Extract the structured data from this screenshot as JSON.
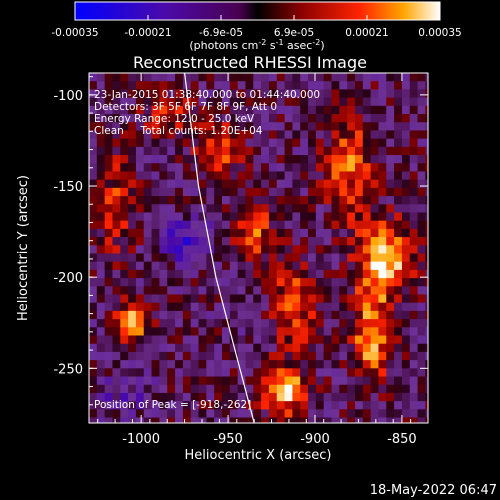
{
  "chart_data": {
    "type": "heatmap",
    "title": "Reconstructed RHESSI Image",
    "xlabel": "Heliocentric X (arcsec)",
    "ylabel": "Heliocentric Y (arcsec)",
    "xlim": [
      -1030,
      -835
    ],
    "ylim": [
      -280,
      -88
    ],
    "x_ticks": [
      -1000,
      -950,
      -900,
      -850
    ],
    "y_ticks": [
      -100,
      -150,
      -200,
      -250
    ],
    "colorbar": {
      "ticks": [
        "-0.00035",
        "-0.00021",
        "-6.9e-05",
        "6.9e-05",
        "0.00021",
        "0.00035"
      ],
      "range": [
        -0.00035,
        0.00035
      ],
      "unit_parts": [
        "(photons cm",
        "-2",
        " s",
        "-1",
        " asec",
        "-2",
        ")"
      ]
    },
    "annotations": [
      "23-Jan-2015 01:38:40.000 to 01:44:40.000",
      "Detectors: 3F 5F 6F 7F 8F 9F, Att 0",
      "Energy Range: 12.0 - 25.0 keV",
      "Clean     Total counts: 1.20E+04"
    ],
    "peak_label": "Position of Peak = [-918,-262]",
    "peak": [
      -918,
      -262
    ],
    "limb_curve": [
      [
        -975,
        -88
      ],
      [
        -967,
        -150
      ],
      [
        -957,
        -200
      ],
      [
        -946,
        -240
      ],
      [
        -935,
        -280
      ]
    ],
    "emission_sources": [
      {
        "x": -860,
        "y": -190,
        "amp": 1.0,
        "sx": 10,
        "sy": 14
      },
      {
        "x": -868,
        "y": -232,
        "amp": 0.75,
        "sx": 8,
        "sy": 18
      },
      {
        "x": -880,
        "y": -140,
        "amp": 0.6,
        "sx": 10,
        "sy": 20
      },
      {
        "x": -918,
        "y": -262,
        "amp": 1.0,
        "sx": 9,
        "sy": 9
      },
      {
        "x": -912,
        "y": -215,
        "amp": 0.65,
        "sx": 8,
        "sy": 16
      },
      {
        "x": -935,
        "y": -175,
        "amp": 0.55,
        "sx": 8,
        "sy": 12
      },
      {
        "x": -955,
        "y": -130,
        "amp": 0.55,
        "sx": 10,
        "sy": 10
      },
      {
        "x": -1005,
        "y": -225,
        "amp": 0.85,
        "sx": 7,
        "sy": 8
      },
      {
        "x": -1015,
        "y": -160,
        "amp": 0.45,
        "sx": 8,
        "sy": 20
      },
      {
        "x": -985,
        "y": -110,
        "amp": 0.45,
        "sx": 10,
        "sy": 8
      }
    ],
    "negative_sources": [
      {
        "x": -975,
        "y": -180,
        "amp": 0.6,
        "sx": 10,
        "sy": 8
      },
      {
        "x": -1010,
        "y": -265,
        "amp": 0.3,
        "sx": 12,
        "sy": 8
      }
    ]
  },
  "footer": {
    "timestamp": "18-May-2022 06:47"
  }
}
